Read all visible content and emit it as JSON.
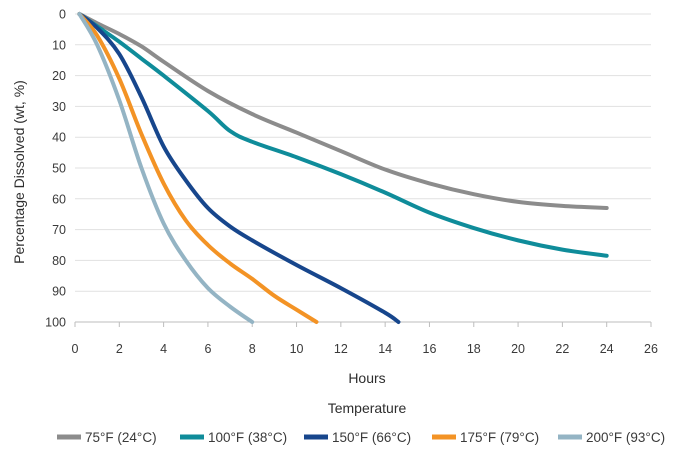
{
  "chart_data": {
    "type": "line",
    "xlabel": "Hours",
    "ylabel": "Percentage Dissolved (wt, %)",
    "legend_title": "Temperature",
    "legend_position": "bottom",
    "xlim": [
      0,
      26
    ],
    "ylim": [
      0,
      100
    ],
    "y_axis_inverted": true,
    "grid": "horizontal",
    "x_ticks": [
      0,
      2,
      4,
      6,
      8,
      10,
      12,
      14,
      16,
      18,
      20,
      22,
      24,
      26
    ],
    "y_ticks": [
      0,
      10,
      20,
      30,
      40,
      50,
      60,
      70,
      80,
      90,
      100
    ],
    "series": [
      {
        "name": "75°F (24°C)",
        "color": "#8c8c8c",
        "points": [
          [
            0.2,
            0
          ],
          [
            1,
            3
          ],
          [
            2,
            6.5
          ],
          [
            3,
            10.5
          ],
          [
            4,
            15.5
          ],
          [
            6,
            25
          ],
          [
            8,
            32.5
          ],
          [
            10,
            38.5
          ],
          [
            12,
            44.5
          ],
          [
            14,
            50.5
          ],
          [
            16,
            55
          ],
          [
            18,
            58.5
          ],
          [
            20,
            61
          ],
          [
            22,
            62.3
          ],
          [
            24,
            63
          ]
        ]
      },
      {
        "name": "100°F (38°C)",
        "color": "#0f8c9a",
        "points": [
          [
            0.2,
            0
          ],
          [
            1,
            4
          ],
          [
            2,
            9
          ],
          [
            3,
            14.5
          ],
          [
            4,
            20
          ],
          [
            6,
            31.5
          ],
          [
            7,
            38
          ],
          [
            8,
            41.5
          ],
          [
            10,
            46.5
          ],
          [
            12,
            52
          ],
          [
            14,
            58
          ],
          [
            16,
            64.5
          ],
          [
            18,
            69.5
          ],
          [
            20,
            73.5
          ],
          [
            22,
            76.5
          ],
          [
            24,
            78.5
          ]
        ]
      },
      {
        "name": "150°F (66°C)",
        "color": "#17468c",
        "points": [
          [
            0.2,
            0
          ],
          [
            1,
            4.5
          ],
          [
            2,
            13
          ],
          [
            3,
            27
          ],
          [
            4,
            43
          ],
          [
            5,
            54
          ],
          [
            6,
            63
          ],
          [
            7,
            69
          ],
          [
            8,
            73.5
          ],
          [
            10,
            81.5
          ],
          [
            12,
            89
          ],
          [
            14,
            97
          ],
          [
            14.6,
            100
          ]
        ]
      },
      {
        "name": "175°F (79°C)",
        "color": "#f39325",
        "points": [
          [
            0.2,
            0
          ],
          [
            1,
            7
          ],
          [
            2,
            21
          ],
          [
            3,
            39
          ],
          [
            4,
            55
          ],
          [
            5,
            67
          ],
          [
            6,
            75
          ],
          [
            7,
            81
          ],
          [
            8,
            86
          ],
          [
            9,
            91.5
          ],
          [
            10,
            96
          ],
          [
            10.9,
            100
          ]
        ]
      },
      {
        "name": "200°F (93°C)",
        "color": "#94b4c4",
        "points": [
          [
            0.2,
            0
          ],
          [
            1,
            10
          ],
          [
            2,
            28
          ],
          [
            3,
            50
          ],
          [
            4,
            68
          ],
          [
            5,
            80
          ],
          [
            6,
            89
          ],
          [
            7,
            95
          ],
          [
            8,
            100
          ]
        ]
      }
    ]
  }
}
